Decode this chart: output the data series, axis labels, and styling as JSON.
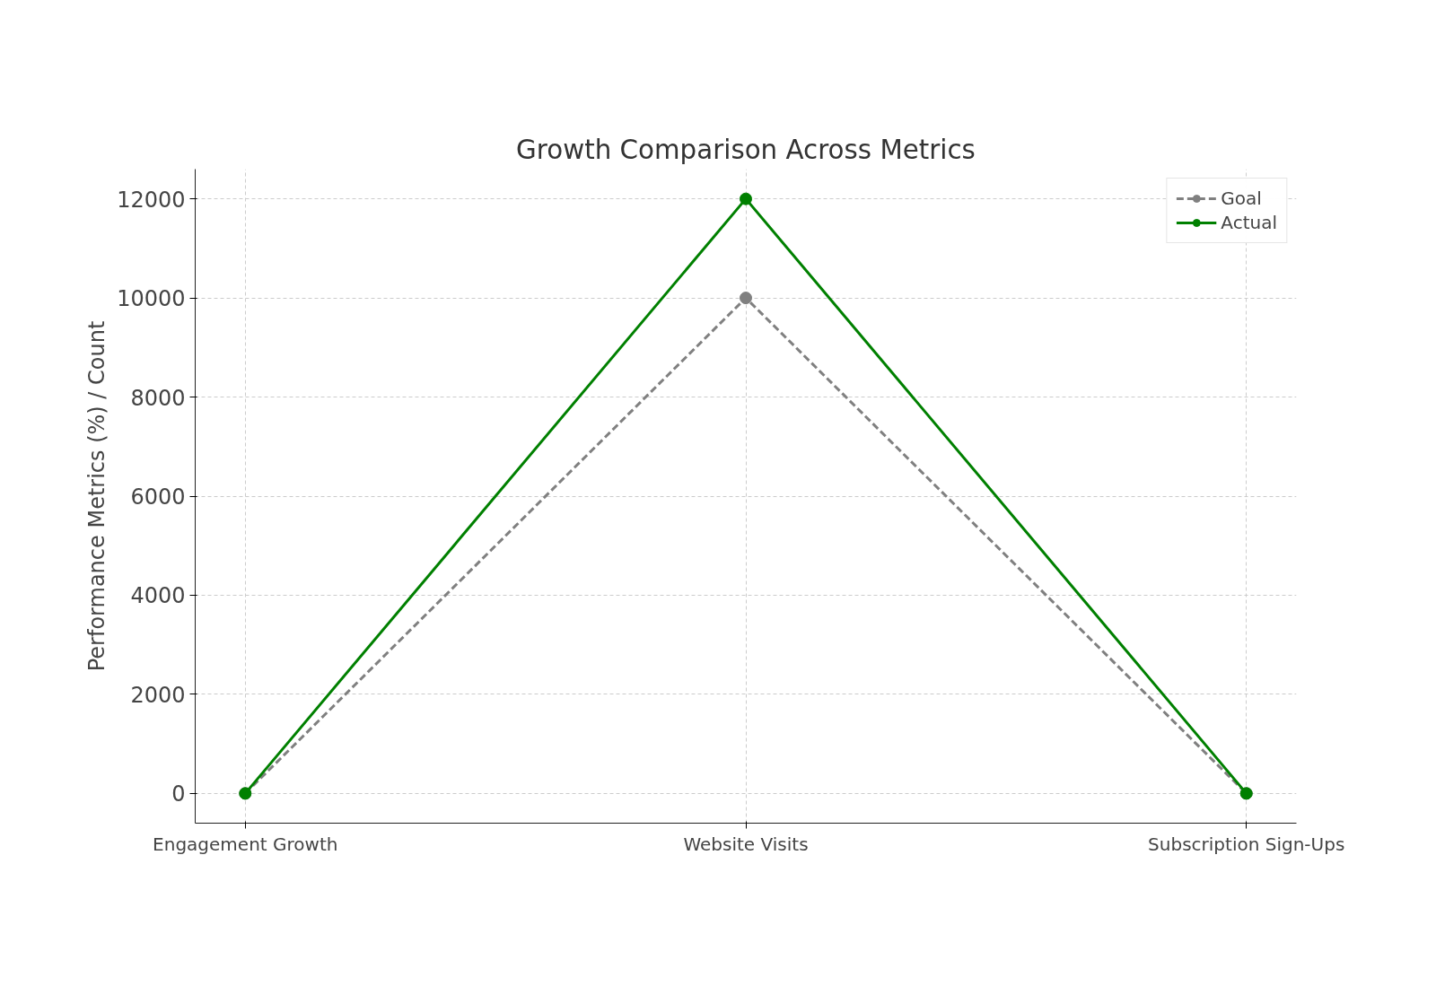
{
  "chart_data": {
    "type": "line",
    "title": "Growth Comparison Across Metrics",
    "ylabel": "Performance Metrics (%) / Count",
    "categories": [
      "Engagement Growth",
      "Website Visits",
      "Subscription Sign-Ups"
    ],
    "series": [
      {
        "name": "Goal",
        "color": "#808080",
        "values": [
          0,
          10000,
          0
        ],
        "line_style": "dashed"
      },
      {
        "name": "Actual",
        "color": "#008000",
        "values": [
          0,
          12000,
          0
        ],
        "line_style": "solid"
      }
    ],
    "ylim": [
      -600,
      12600
    ],
    "yticks": [
      0,
      2000,
      4000,
      6000,
      8000,
      10000,
      12000
    ],
    "grid": true,
    "legend": "top right",
    "marker": "circle"
  }
}
